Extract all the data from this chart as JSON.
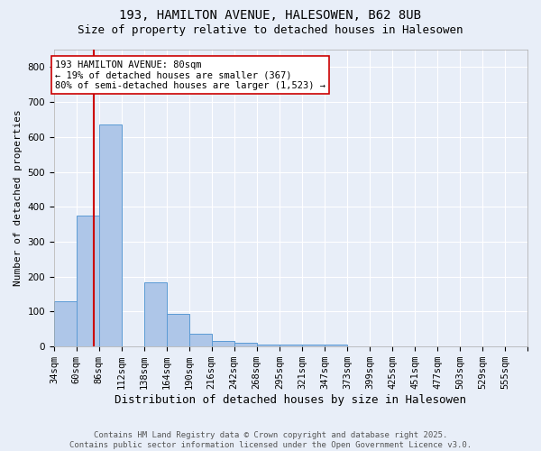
{
  "title1": "193, HAMILTON AVENUE, HALESOWEN, B62 8UB",
  "title2": "Size of property relative to detached houses in Halesowen",
  "xlabel": "Distribution of detached houses by size in Halesowen",
  "ylabel": "Number of detached properties",
  "bin_labels": [
    "34sqm",
    "60sqm",
    "86sqm",
    "112sqm",
    "138sqm",
    "164sqm",
    "190sqm",
    "216sqm",
    "242sqm",
    "268sqm",
    "295sqm",
    "321sqm",
    "347sqm",
    "373sqm",
    "399sqm",
    "425sqm",
    "451sqm",
    "477sqm",
    "503sqm",
    "529sqm",
    "555sqm"
  ],
  "bin_edges": [
    34,
    60,
    86,
    112,
    138,
    164,
    190,
    216,
    242,
    268,
    295,
    321,
    347,
    373,
    399,
    425,
    451,
    477,
    503,
    529,
    555
  ],
  "bar_heights": [
    130,
    375,
    635,
    0,
    185,
    93,
    36,
    17,
    10,
    5,
    6,
    7,
    5,
    0,
    0,
    0,
    0,
    0,
    0,
    0,
    0
  ],
  "bar_color": "#aec6e8",
  "bar_edge_color": "#5b9bd5",
  "property_size": 80,
  "property_line_color": "#cc0000",
  "annotation_text": "193 HAMILTON AVENUE: 80sqm\n← 19% of detached houses are smaller (367)\n80% of semi-detached houses are larger (1,523) →",
  "annotation_box_color": "#ffffff",
  "annotation_box_edge_color": "#cc0000",
  "ylim": [
    0,
    850
  ],
  "yticks": [
    0,
    100,
    200,
    300,
    400,
    500,
    600,
    700,
    800
  ],
  "background_color": "#e8eef8",
  "grid_color": "#ffffff",
  "footer_text": "Contains HM Land Registry data © Crown copyright and database right 2025.\nContains public sector information licensed under the Open Government Licence v3.0.",
  "title1_fontsize": 10,
  "title2_fontsize": 9,
  "xlabel_fontsize": 9,
  "ylabel_fontsize": 8,
  "tick_fontsize": 7.5,
  "annotation_fontsize": 7.5,
  "footer_fontsize": 6.5
}
